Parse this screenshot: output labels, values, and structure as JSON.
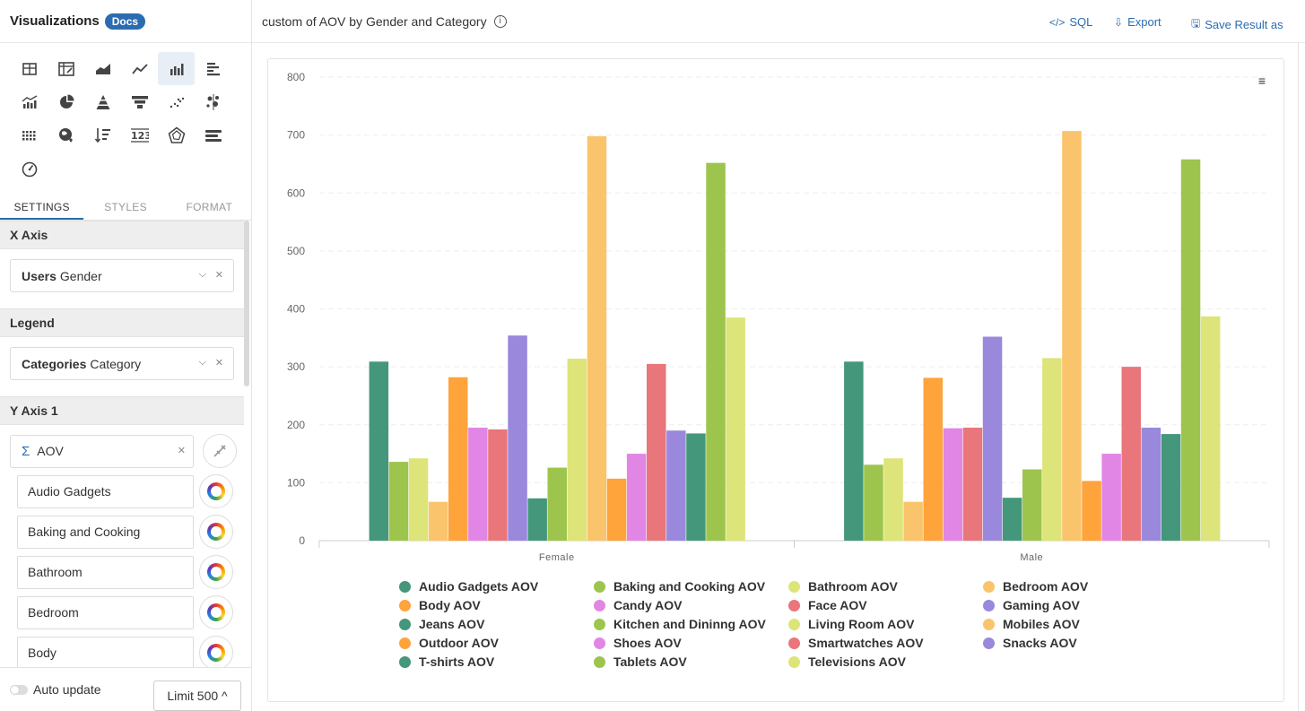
{
  "sidebar": {
    "title": "Visualizations",
    "docs_label": "Docs",
    "viz_icons": [
      "table-chart-icon",
      "pivot-table-icon",
      "area-chart-icon",
      "line-chart-icon",
      "column-chart-icon",
      "bar-chart-icon",
      "combo-chart-icon",
      "pie-chart-icon",
      "pyramid-chart-icon",
      "funnel-chart-icon",
      "scatter-chart-icon",
      "bubble-chart-icon",
      "heatmap-icon",
      "geo-map-icon",
      "sorted-list-icon",
      "number-metric-icon",
      "radar-chart-icon",
      "bullet-chart-icon",
      "gauge-icon"
    ],
    "active_viz": "column-chart-icon",
    "tabs": [
      "SETTINGS",
      "STYLES",
      "FORMAT"
    ],
    "active_tab": "SETTINGS",
    "x_axis": {
      "heading": "X Axis",
      "field_bold": "Users",
      "field_name": "Gender"
    },
    "legend": {
      "heading": "Legend",
      "field_bold": "Categories",
      "field_name": "Category"
    },
    "y_axis": {
      "heading": "Y Axis 1",
      "measure": "AOV",
      "sigma": "Σ",
      "categories": [
        "Audio Gadgets",
        "Baking and Cooking",
        "Bathroom",
        "Bedroom",
        "Body"
      ]
    },
    "footer": {
      "auto_update_label": "Auto update",
      "limit_label": "Limit 500 ^"
    }
  },
  "header": {
    "chart_title": "custom of AOV by Gender and Category",
    "info_glyph": "i",
    "sql_label": "SQL",
    "export_label": "Export",
    "save_label": "Save Result as",
    "sql_glyph": "</>",
    "export_glyph": "⇩",
    "save_glyph": "🖫"
  },
  "chart_menu_glyph": "≡",
  "chart_data": {
    "type": "bar",
    "title": "custom of AOV by Gender and Category",
    "categories": [
      "Female",
      "Male"
    ],
    "ylim": [
      0,
      800
    ],
    "yticks": [
      0,
      100,
      200,
      300,
      400,
      500,
      600,
      700,
      800
    ],
    "grid": true,
    "legend_position": "bottom",
    "series": [
      {
        "name": "Audio Gadgets AOV",
        "color": "#44977a",
        "values": [
          309,
          309
        ]
      },
      {
        "name": "Baking and Cooking AOV",
        "color": "#9dc54d",
        "values": [
          136,
          131
        ]
      },
      {
        "name": "Bathroom AOV",
        "color": "#dde479",
        "values": [
          142,
          142
        ]
      },
      {
        "name": "Bedroom AOV",
        "color": "#fac46d",
        "values": [
          67,
          67
        ]
      },
      {
        "name": "Body AOV",
        "color": "#ffa33b",
        "values": [
          282,
          281
        ]
      },
      {
        "name": "Candy AOV",
        "color": "#e186e4",
        "values": [
          195,
          194
        ]
      },
      {
        "name": "Face AOV",
        "color": "#e8767b",
        "values": [
          192,
          195
        ]
      },
      {
        "name": "Gaming AOV",
        "color": "#9a88dc",
        "values": [
          354,
          352
        ]
      },
      {
        "name": "Jeans AOV",
        "color": "#44977a",
        "values": [
          73,
          74
        ]
      },
      {
        "name": "Kitchen and Dininng AOV",
        "color": "#9dc54d",
        "values": [
          126,
          123
        ]
      },
      {
        "name": "Living Room AOV",
        "color": "#dde479",
        "values": [
          314,
          315
        ]
      },
      {
        "name": "Mobiles AOV",
        "color": "#fac46d",
        "values": [
          698,
          707
        ]
      },
      {
        "name": "Outdoor AOV",
        "color": "#ffa33b",
        "values": [
          107,
          103
        ]
      },
      {
        "name": "Shoes AOV",
        "color": "#e186e4",
        "values": [
          150,
          150
        ]
      },
      {
        "name": "Smartwatches AOV",
        "color": "#e8767b",
        "values": [
          305,
          300
        ]
      },
      {
        "name": "Snacks AOV",
        "color": "#9a88dc",
        "values": [
          190,
          195
        ]
      },
      {
        "name": "T-shirts AOV",
        "color": "#44977a",
        "values": [
          185,
          184
        ]
      },
      {
        "name": "Tablets AOV",
        "color": "#9dc54d",
        "values": [
          652,
          658
        ]
      },
      {
        "name": "Televisions AOV",
        "color": "#dde479",
        "values": [
          385,
          387
        ]
      }
    ]
  }
}
